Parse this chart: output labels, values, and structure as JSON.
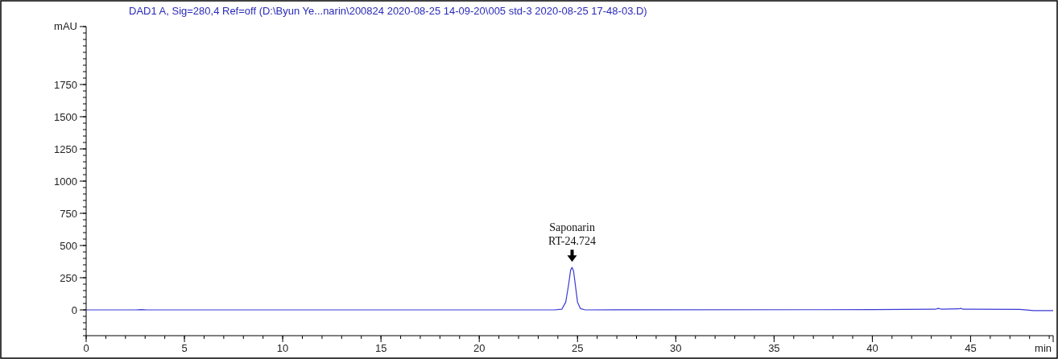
{
  "chart_data": {
    "type": "line",
    "title": "DAD1 A, Sig=280,4 Ref=off (D:\\Byun Ye...narin\\200824 2020-08-25 14-09-20\\005 std-3 2020-08-25 17-48-03.D)",
    "xlabel": "min",
    "ylabel": "mAU",
    "xlim": [
      0,
      49.2
    ],
    "xticks": [
      0,
      5,
      10,
      15,
      20,
      25,
      30,
      35,
      40,
      45
    ],
    "ylim": [
      -200,
      2200
    ],
    "yticks": [
      0,
      250,
      500,
      750,
      1000,
      1250,
      1500,
      1750
    ],
    "series": [
      {
        "color": "#3a3ad6",
        "x": [
          0,
          2.5,
          2.8,
          3.1,
          23.8,
          24.2,
          24.4,
          24.55,
          24.65,
          24.72,
          24.8,
          24.9,
          25.0,
          25.15,
          25.4,
          40,
          43.2,
          43.35,
          43.5,
          44.4,
          44.5,
          44.6,
          45.0,
          47.5,
          48.2,
          49.2
        ],
        "values": [
          0,
          0,
          2,
          0,
          0,
          5,
          60,
          200,
          310,
          330,
          300,
          180,
          60,
          10,
          0,
          2,
          5,
          12,
          6,
          8,
          12,
          6,
          5,
          4,
          -5,
          -5
        ]
      }
    ],
    "annotations": [
      {
        "text": "Saponarin\nRT-24.724",
        "x": 24.724,
        "y": 330
      }
    ],
    "marker": "none",
    "line_style": "solid"
  }
}
